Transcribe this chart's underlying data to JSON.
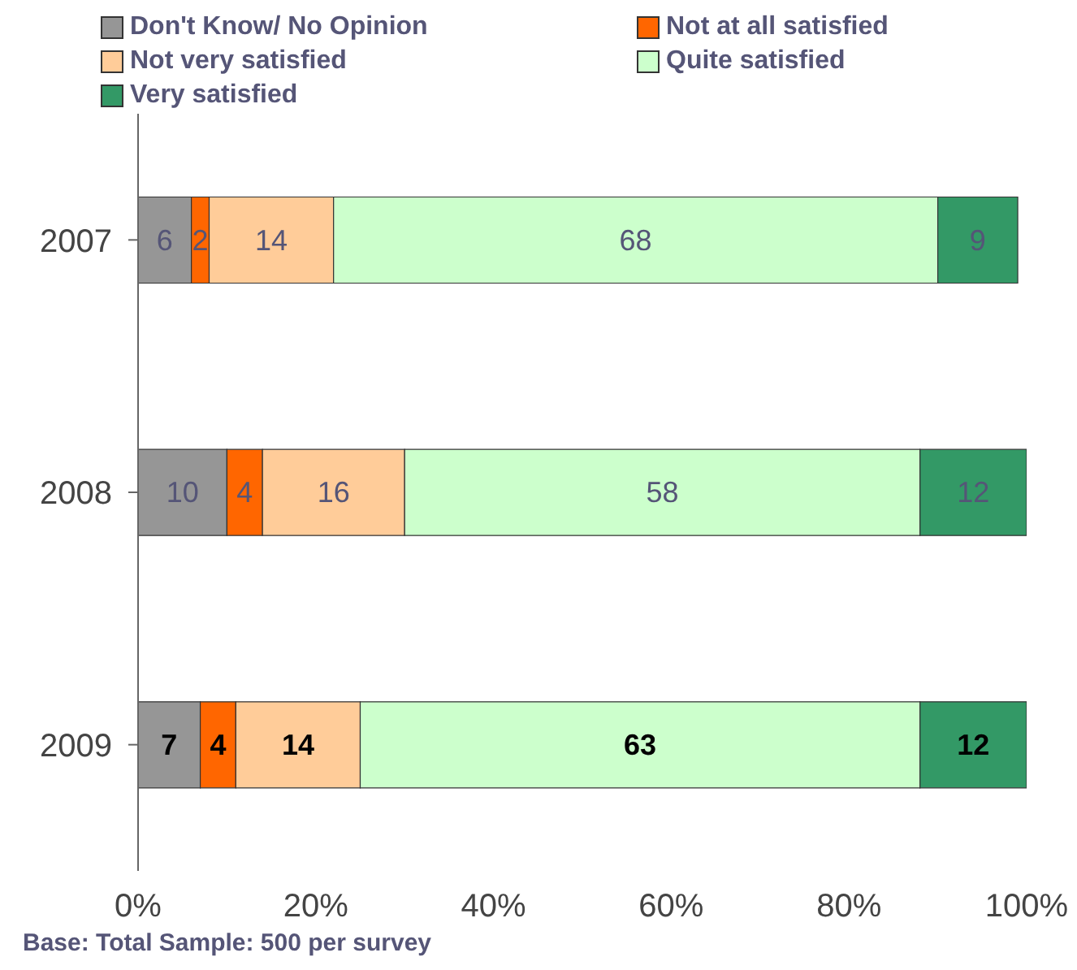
{
  "chart_data": {
    "type": "bar",
    "orientation": "horizontal",
    "stacked": true,
    "categories": [
      "2007",
      "2008",
      "2009"
    ],
    "series": [
      {
        "name": "Don't Know/ No Opinion",
        "color": "#969696",
        "values": [
          6,
          10,
          7
        ]
      },
      {
        "name": "Not at all satisfied",
        "color": "#ff6600",
        "values": [
          2,
          4,
          4
        ]
      },
      {
        "name": "Not very satisfied",
        "color": "#ffcc99",
        "values": [
          14,
          16,
          14
        ]
      },
      {
        "name": "Quite satisfied",
        "color": "#ccffcc",
        "values": [
          68,
          58,
          63
        ]
      },
      {
        "name": "Very satisfied",
        "color": "#339966",
        "values": [
          9,
          12,
          12
        ]
      }
    ],
    "xlim": [
      0,
      100
    ],
    "xticks": [
      {
        "value": 0,
        "label": "0%"
      },
      {
        "value": 20,
        "label": "20%"
      },
      {
        "value": 40,
        "label": "40%"
      },
      {
        "value": 60,
        "label": "60%"
      },
      {
        "value": 80,
        "label": "80%"
      },
      {
        "value": 100,
        "label": "100%"
      }
    ],
    "data_labels": true,
    "legend": "top",
    "grid": false,
    "annotations": [
      "Base: Total Sample: 500 per survey"
    ]
  }
}
